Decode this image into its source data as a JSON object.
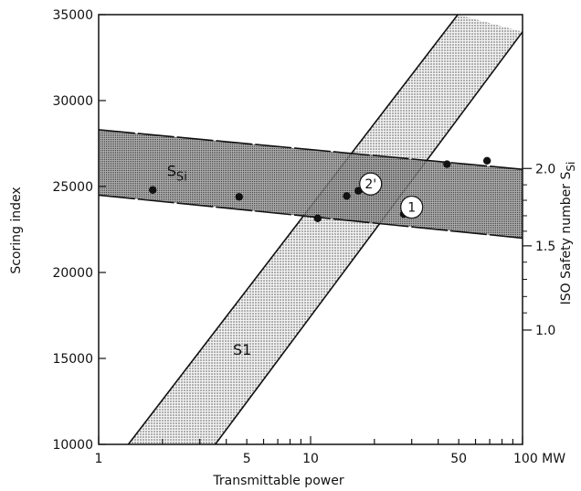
{
  "chart_data": {
    "type": "scatter",
    "title": "",
    "xlabel": "Transmittable power",
    "ylabel": "Scoring index",
    "y2label_main": "ISO Safety number S",
    "y2label_sub": "Si",
    "x_scale": "log",
    "xlim": [
      1,
      100
    ],
    "ylim": [
      10000,
      35000
    ],
    "x_ticks": [
      {
        "value": 1,
        "label": "1"
      },
      {
        "value": 5,
        "label": "5"
      },
      {
        "value": 10,
        "label": "10"
      },
      {
        "value": 50,
        "label": "50"
      },
      {
        "value": 100,
        "label": "100 MW"
      }
    ],
    "y_ticks": [
      {
        "value": 10000,
        "label": "10000"
      },
      {
        "value": 15000,
        "label": "15000"
      },
      {
        "value": 20000,
        "label": "20000"
      },
      {
        "value": 25000,
        "label": "25000"
      },
      {
        "value": 30000,
        "label": "30000"
      },
      {
        "value": 35000,
        "label": "35000"
      }
    ],
    "y2_ticks": [
      {
        "y": 26050,
        "label": "2.0"
      },
      {
        "y": 21550,
        "label": "1.5"
      },
      {
        "y": 16650,
        "label": "1.0"
      }
    ],
    "y2_minor": [
      25100,
      24200,
      23300,
      22400,
      20600,
      19600,
      18600,
      17650
    ],
    "bands": [
      {
        "name": "SSi",
        "label_main": "S",
        "label_sub": "Si",
        "label_at": {
          "x": 2.1,
          "y": 25600
        },
        "shade": "dark",
        "upper": [
          [
            1,
            28300
          ],
          [
            100,
            26000
          ]
        ],
        "lower": [
          [
            1,
            24500
          ],
          [
            100,
            22000
          ]
        ]
      },
      {
        "name": "S1",
        "label_main": "S1",
        "label_at": {
          "x": 4.3,
          "y": 15200
        },
        "shade": "light",
        "upper": [
          [
            1.38,
            10000
          ],
          [
            49.5,
            35000
          ]
        ],
        "lower": [
          [
            3.55,
            10000
          ],
          [
            100,
            34000
          ]
        ]
      }
    ],
    "points": [
      {
        "x": 1.8,
        "y": 24800
      },
      {
        "x": 4.6,
        "y": 24400
      },
      {
        "x": 10.8,
        "y": 23150
      },
      {
        "x": 14.8,
        "y": 24450
      },
      {
        "x": 16.8,
        "y": 24750
      },
      {
        "x": 27.5,
        "y": 23400
      },
      {
        "x": 44.0,
        "y": 26300
      },
      {
        "x": 68.0,
        "y": 26500
      }
    ],
    "labeled_points": [
      {
        "label": "2'",
        "x": 19.2,
        "y": 25150
      },
      {
        "label": "1",
        "x": 30.0,
        "y": 23800
      }
    ]
  }
}
